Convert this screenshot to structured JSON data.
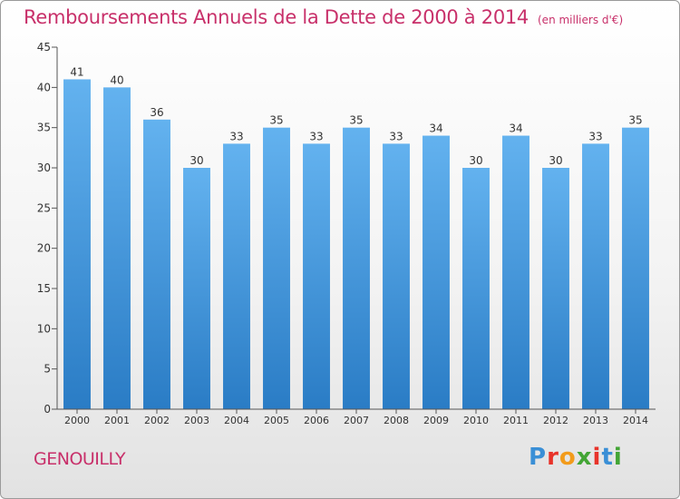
{
  "title": "Remboursements Annuels de la Dette de 2000 à 2014",
  "unit_note": "(en milliers d'€)",
  "place": "GENOUILLY",
  "logo": {
    "text": "Proxiti",
    "letter_colors": [
      "#3a8fd6",
      "#e8332a",
      "#f29b1b",
      "#43a535",
      "#e8332a",
      "#3a8fd6",
      "#43a535"
    ]
  },
  "colors": {
    "title": "#c8306a",
    "bar_top": "#63b2ef",
    "bar_bottom": "#2a7cc5",
    "axis": "#555555",
    "text": "#333333"
  },
  "chart_data": {
    "type": "bar",
    "categories": [
      "2000",
      "2001",
      "2002",
      "2003",
      "2004",
      "2005",
      "2006",
      "2007",
      "2008",
      "2009",
      "2010",
      "2011",
      "2012",
      "2013",
      "2014"
    ],
    "values": [
      41,
      40,
      36,
      30,
      33,
      35,
      33,
      35,
      33,
      34,
      30,
      34,
      30,
      33,
      35
    ],
    "ylim": [
      0,
      45
    ],
    "yticks": [
      0,
      5,
      10,
      15,
      20,
      25,
      30,
      35,
      40,
      45
    ],
    "grid": false,
    "data_labels": true
  }
}
